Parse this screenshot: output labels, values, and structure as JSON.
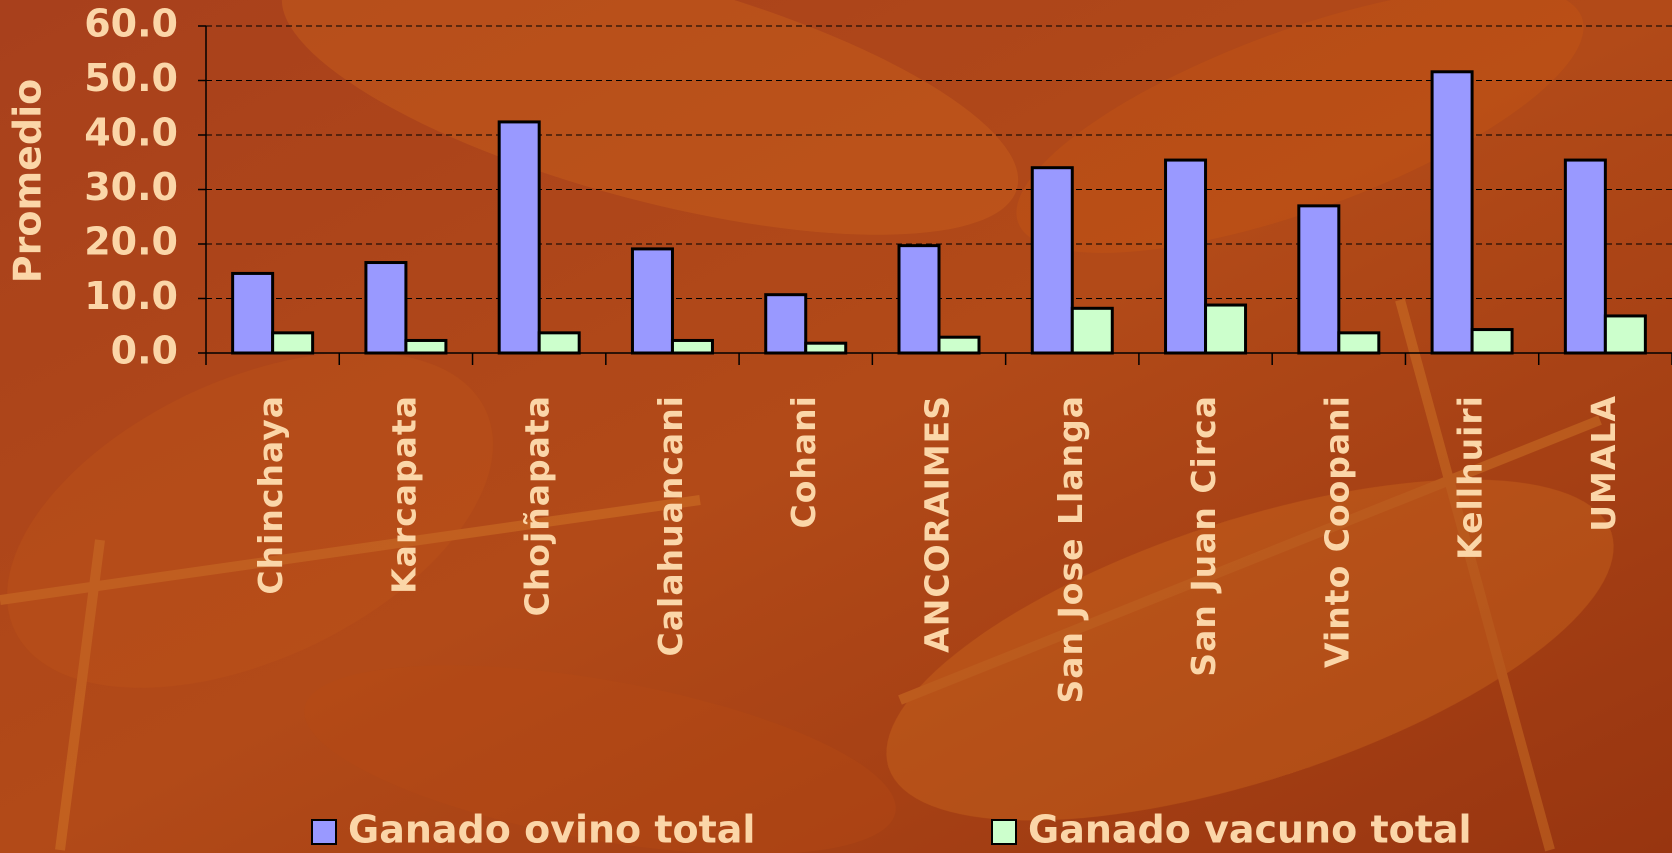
{
  "chart_data": {
    "type": "bar",
    "y_label": "Promedio",
    "categories": [
      "Chinchaya",
      "Karcapata",
      "Chojñapata",
      "Calahuancani",
      "Cohani",
      "ANCORAIMES",
      "San Jose Llanga",
      "San Juan Circa",
      "Vinto Coopani",
      "Kellhuiri",
      "UMALA"
    ],
    "series": [
      {
        "name": "Ganado ovino total",
        "color": "#9999ff",
        "values": [
          14.6,
          16.6,
          42.4,
          19.1,
          10.7,
          19.7,
          34.0,
          35.4,
          27.0,
          51.6,
          35.4
        ]
      },
      {
        "name": "Ganado vacuno total",
        "color": "#ccffcc",
        "values": [
          3.7,
          2.3,
          3.7,
          2.3,
          1.8,
          2.9,
          8.2,
          8.8,
          3.7,
          4.3,
          6.8
        ]
      }
    ],
    "ylim": [
      0,
      60
    ],
    "yticks": [
      {
        "value": 0,
        "label": "0.0"
      },
      {
        "value": 10,
        "label": "10.0"
      },
      {
        "value": 20,
        "label": "20.0"
      },
      {
        "value": 30,
        "label": "30.0"
      },
      {
        "value": 40,
        "label": "40.0"
      },
      {
        "value": 50,
        "label": "50.0"
      },
      {
        "value": 60,
        "label": "60.0"
      }
    ],
    "grid": true
  }
}
